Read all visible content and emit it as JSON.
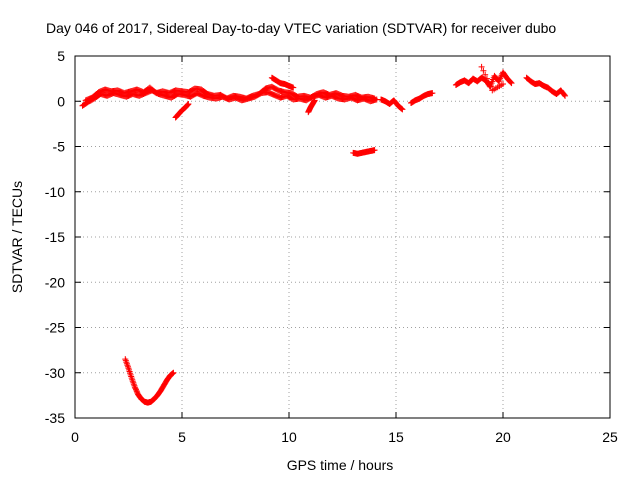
{
  "chart_data": {
    "type": "scatter",
    "title": "Day 046 of 2017, Sidereal Day-to-day VTEC variation (SDTVAR) for receiver dubo",
    "xlabel": "GPS time / hours",
    "ylabel": "SDTVAR / TECUs",
    "xlim": [
      0,
      25
    ],
    "ylim": [
      -35,
      5
    ],
    "xticks": [
      "0",
      "5",
      "10",
      "15",
      "20",
      "25"
    ],
    "yticks": [
      "5",
      "0",
      "-5",
      "-10",
      "-15",
      "-20",
      "-25",
      "-30",
      "-35"
    ],
    "grid": true,
    "marker": "+",
    "color": "#ff0000",
    "series": [
      {
        "name": "SDTVAR",
        "segments": [
          {
            "x": [
              0.35,
              0.6,
              0.9,
              1.2,
              1.5,
              1.8,
              2.1,
              2.4,
              2.7,
              3.0,
              3.3,
              3.6,
              3.9,
              4.2,
              4.5,
              4.8,
              5.1,
              5.4,
              5.7,
              6.0,
              6.3,
              6.6,
              6.9,
              7.2,
              7.5,
              7.8,
              8.1,
              8.4,
              8.7,
              9.0,
              9.3,
              9.6,
              9.9,
              10.2,
              10.5,
              10.8,
              11.1,
              11.4,
              11.7,
              12.0,
              12.3,
              12.6,
              12.9,
              13.2,
              13.5,
              13.8,
              14.1
            ],
            "y": [
              -0.5,
              -0.1,
              0.3,
              0.8,
              0.6,
              0.9,
              0.7,
              0.5,
              0.8,
              0.6,
              0.9,
              1.2,
              0.8,
              0.6,
              0.4,
              0.8,
              0.7,
              0.5,
              0.9,
              0.6,
              0.4,
              0.3,
              0.5,
              0.2,
              0.4,
              0.1,
              0.3,
              0.5,
              0.9,
              1.0,
              0.7,
              0.4,
              0.6,
              0.2,
              0.3,
              0.1,
              0.5,
              0.7,
              0.4,
              0.6,
              0.3,
              0.2,
              0.4,
              0.1,
              0.3,
              0.0,
              0.2
            ]
          },
          {
            "x": [
              0.5,
              0.8,
              1.1,
              1.4,
              1.7,
              2.0,
              2.3,
              2.6,
              2.9,
              3.2,
              3.5,
              3.8,
              4.1,
              4.4,
              4.7,
              5.0,
              5.3,
              5.6,
              5.9,
              6.2,
              6.5,
              6.8,
              7.1,
              7.4,
              7.7,
              8.0,
              8.3,
              8.6,
              8.9,
              9.2,
              9.5,
              9.8,
              10.1,
              10.4,
              10.7,
              11.0,
              11.3,
              11.6,
              11.9,
              12.2,
              12.5,
              12.8,
              13.1,
              13.4,
              13.7,
              14.0
            ],
            "y": [
              0.1,
              0.4,
              1.0,
              1.3,
              1.1,
              1.2,
              0.9,
              1.1,
              1.3,
              1.0,
              1.5,
              0.9,
              1.1,
              0.9,
              1.2,
              1.1,
              1.0,
              1.4,
              1.3,
              0.8,
              0.6,
              0.7,
              0.3,
              0.6,
              0.5,
              0.3,
              0.6,
              0.8,
              1.4,
              1.6,
              1.2,
              1.0,
              0.9,
              0.5,
              0.6,
              0.4,
              0.8,
              1.0,
              0.7,
              0.9,
              0.6,
              0.5,
              0.7,
              0.4,
              0.5,
              0.3
            ]
          },
          {
            "x": [
              4.7,
              4.85,
              5.0,
              5.15,
              5.3
            ],
            "y": [
              -1.8,
              -1.4,
              -1.0,
              -0.7,
              -0.3
            ]
          },
          {
            "x": [
              9.2,
              9.4,
              9.6,
              9.8,
              10.0,
              10.2
            ],
            "y": [
              2.6,
              2.3,
              2.0,
              1.9,
              1.7,
              1.5
            ]
          },
          {
            "x": [
              10.9,
              11.0,
              11.1,
              11.2
            ],
            "y": [
              -1.2,
              -0.7,
              -0.3,
              0.1
            ]
          },
          {
            "x": [
              13.0,
              13.2,
              13.4,
              13.6,
              13.8,
              14.0
            ],
            "y": [
              -5.7,
              -5.8,
              -5.7,
              -5.6,
              -5.5,
              -5.4
            ]
          },
          {
            "x": [
              14.3,
              14.5,
              14.7,
              14.9,
              15.1,
              15.3
            ],
            "y": [
              0.2,
              0.0,
              -0.3,
              0.1,
              -0.5,
              -0.9
            ]
          },
          {
            "x": [
              15.7,
              15.9,
              16.1,
              16.3,
              16.5,
              16.7
            ],
            "y": [
              -0.2,
              0.1,
              0.3,
              0.6,
              0.8,
              0.9
            ]
          },
          {
            "x": [
              17.8,
              18.0,
              18.2,
              18.4,
              18.6,
              18.8,
              19.0,
              19.2,
              19.4,
              19.6,
              19.8,
              20.0,
              20.2,
              20.4
            ],
            "y": [
              1.8,
              2.1,
              2.3,
              2.0,
              2.5,
              2.2,
              2.6,
              2.3,
              1.6,
              2.8,
              2.2,
              3.2,
              2.5,
              2.0
            ]
          },
          {
            "x": [
              19.0,
              19.5,
              20.0
            ],
            "y": [
              3.8,
              1.2,
              1.9
            ]
          },
          {
            "x": [
              21.1,
              21.3,
              21.5,
              21.7,
              21.9,
              22.1,
              22.3,
              22.5,
              22.7,
              22.9
            ],
            "y": [
              2.6,
              2.2,
              1.9,
              2.0,
              1.7,
              1.5,
              1.1,
              0.8,
              1.2,
              0.6
            ]
          },
          {
            "x": [
              2.35,
              2.5,
              2.65,
              2.8,
              2.95,
              3.1,
              3.25,
              3.4,
              3.55,
              3.7,
              3.85,
              4.0,
              4.15,
              4.3,
              4.45,
              4.6
            ],
            "y": [
              -28.5,
              -29.5,
              -30.6,
              -31.6,
              -32.4,
              -32.9,
              -33.2,
              -33.3,
              -33.2,
              -32.9,
              -32.5,
              -32.0,
              -31.4,
              -30.8,
              -30.3,
              -30.0
            ]
          }
        ]
      }
    ]
  }
}
